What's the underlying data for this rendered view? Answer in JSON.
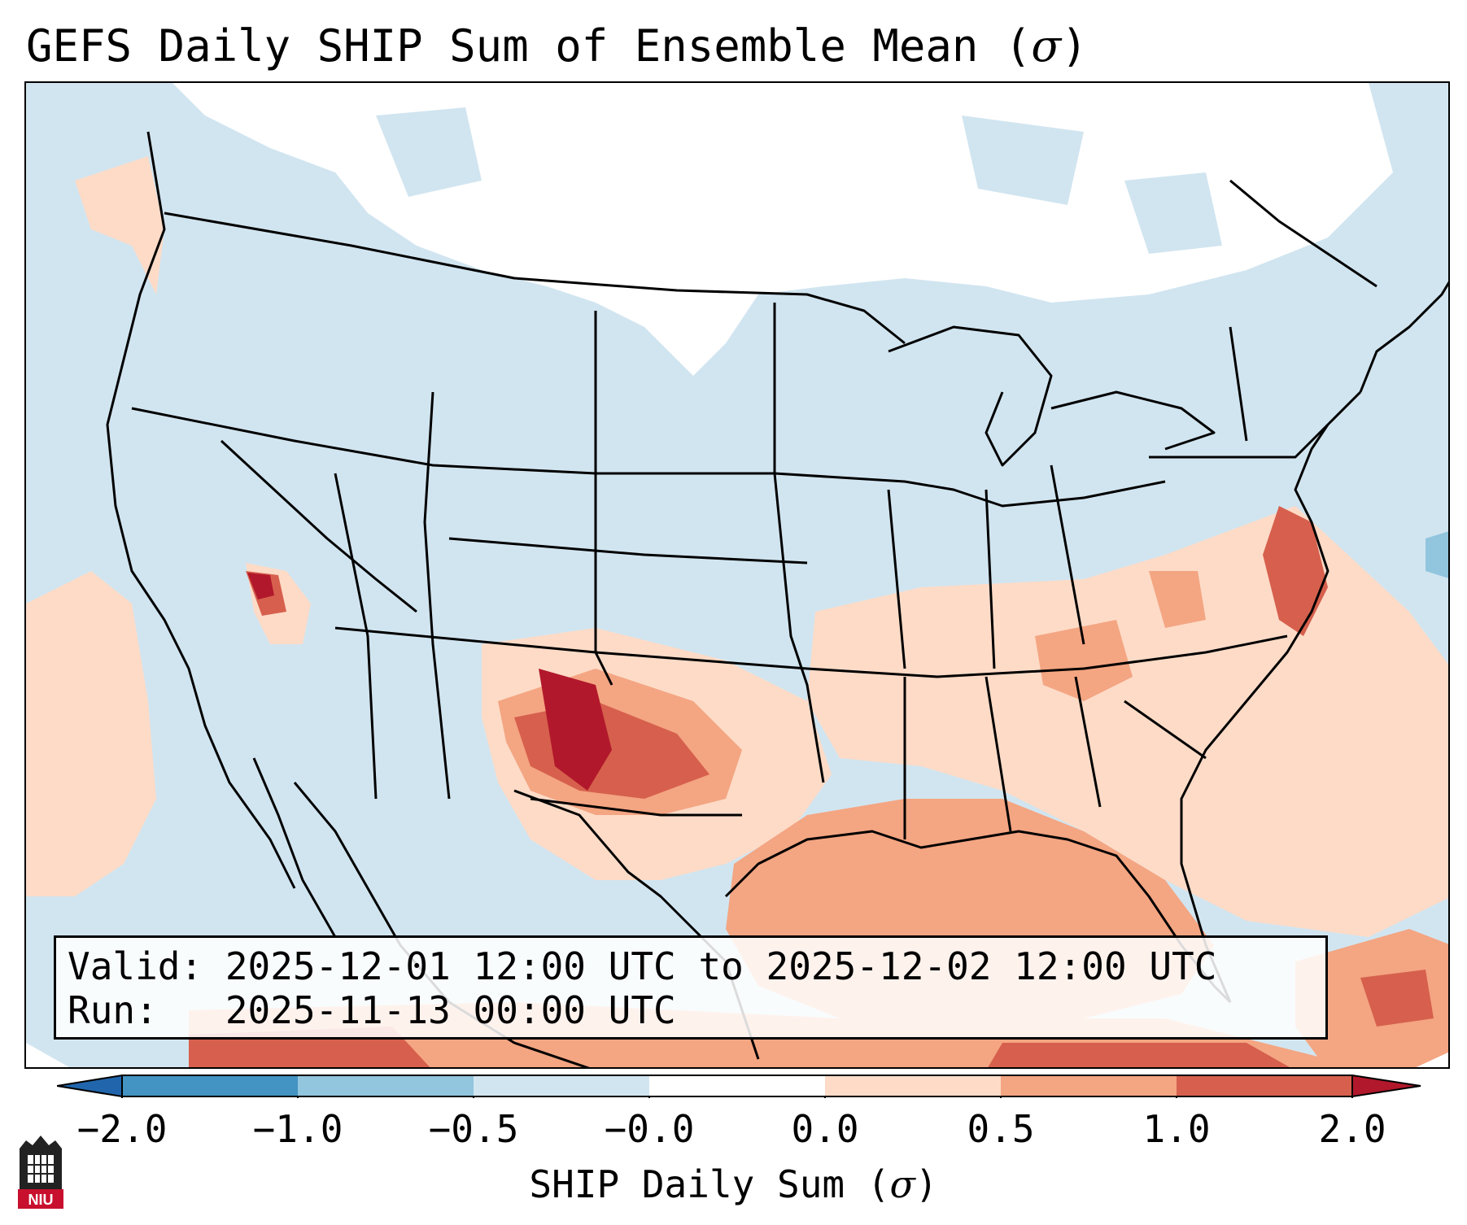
{
  "figure": {
    "title_prefix": "GEFS Daily SHIP Sum of Ensemble Mean (",
    "title_symbol": "σ",
    "title_suffix": ")"
  },
  "info": {
    "valid_line": "Valid: 2025-12-01 12:00 UTC to 2025-12-02 12:00 UTC",
    "run_line": "Run:   2025-11-13 00:00 UTC"
  },
  "colorbar": {
    "label_prefix": "SHIP Daily Sum (",
    "label_symbol": "σ",
    "label_suffix": ")",
    "ticks": [
      "−2.0",
      "−1.0",
      "−0.5",
      "−0.0",
      "0.0",
      "0.5",
      "1.0",
      "2.0"
    ],
    "colors": [
      "#2166ac",
      "#4393c3",
      "#92c5de",
      "#d1e5f0",
      "#ffffff",
      "#fddbc7",
      "#f4a582",
      "#d6604d",
      "#b2182b"
    ]
  },
  "map": {
    "background_color": "#d1e5f0",
    "white_color": "#ffffff",
    "peach_color": "#fddbc7",
    "salmon_color": "#f4a582",
    "red_color": "#d6604d",
    "darkred_color": "#b2182b",
    "blue_color": "#92c5de"
  },
  "logo": {
    "text": "NIU"
  }
}
